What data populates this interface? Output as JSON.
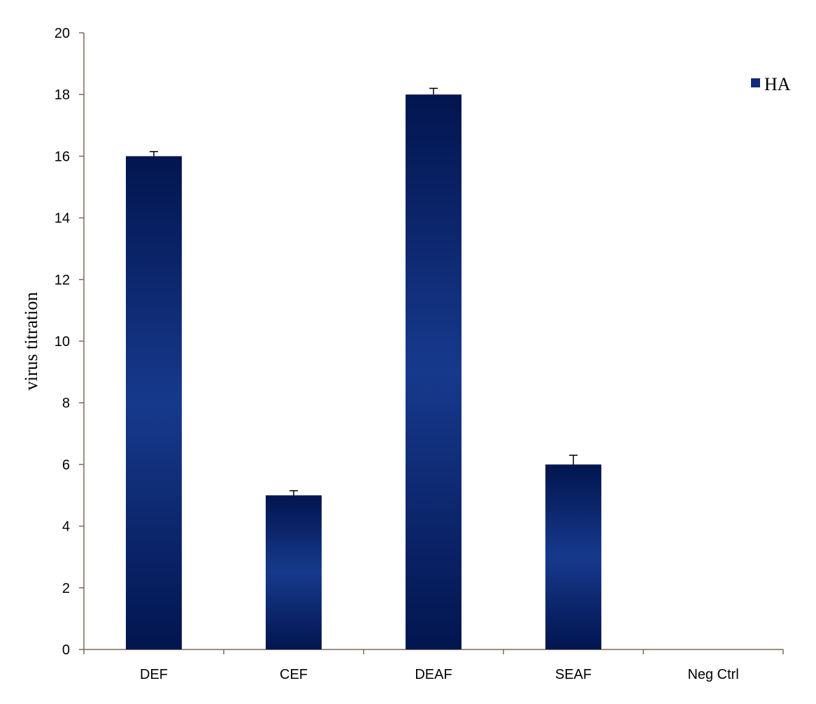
{
  "chart_data": {
    "type": "bar",
    "title": "",
    "xlabel": "",
    "ylabel": "virus titration",
    "categories": [
      "DEF",
      "CEF",
      "DEAF",
      "SEAF",
      "Neg Ctrl"
    ],
    "series": [
      {
        "name": "HA",
        "values": [
          16,
          5,
          18,
          6,
          0
        ],
        "errors": [
          0.15,
          0.15,
          0.2,
          0.3,
          0
        ],
        "color": "#0d2b7a"
      }
    ],
    "ylim": [
      0,
      20
    ],
    "yticks": [
      0,
      2,
      4,
      6,
      8,
      10,
      12,
      14,
      16,
      18,
      20
    ],
    "grid": false,
    "legend_position": "top-right",
    "colors": {
      "bar_edge": "#02154f",
      "bar_center": "#17398c",
      "axis": "#7a6a5a",
      "error_bar": "#000000"
    }
  }
}
